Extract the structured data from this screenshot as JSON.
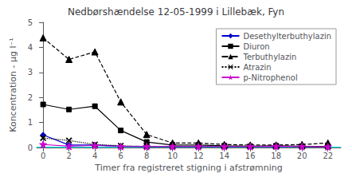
{
  "chart_data": {
    "type": "line",
    "title": "Nedbørshændelse 12-05-1999 i Lillebæk, Fyn",
    "xlabel": "Timer fra registreret stigning i afstrømning",
    "ylabel": "Koncentration - µg l⁻¹",
    "x": [
      0,
      2,
      4,
      6,
      8,
      10,
      12,
      14,
      16,
      18,
      20,
      22
    ],
    "xlim": [
      -0.5,
      23
    ],
    "xticks": [
      0,
      2,
      4,
      6,
      8,
      10,
      12,
      14,
      16,
      18,
      20,
      22
    ],
    "ylim": [
      0,
      5
    ],
    "yticks": [
      0,
      1,
      2,
      3,
      4,
      5
    ],
    "grid": false,
    "legend": "upper right",
    "reference_lines": [
      {
        "y": 0.03,
        "color": "#00ffff"
      }
    ],
    "series": [
      {
        "name": "Desethylterbuthylazin",
        "color": "#0000cc",
        "marker": "diamond",
        "line_style": "solid",
        "values": [
          0.5,
          0.1,
          0.1,
          0.05,
          0.04,
          0.04,
          0.04,
          0.04,
          0.04,
          0.04,
          0.04,
          0.04
        ]
      },
      {
        "name": "Diuron",
        "color": "#000000",
        "marker": "square",
        "line_style": "solid",
        "values": [
          1.72,
          1.52,
          1.65,
          0.68,
          0.22,
          0.1,
          0.1,
          0.07,
          0.05,
          0.07,
          0.05,
          0.04
        ]
      },
      {
        "name": "Terbuthylazin",
        "color": "#000000",
        "marker": "triangle",
        "line_style": "dashed",
        "values": [
          4.38,
          3.52,
          3.82,
          1.82,
          0.52,
          0.18,
          0.18,
          0.12,
          0.1,
          0.1,
          0.12,
          0.18
        ]
      },
      {
        "name": "Atrazin",
        "color": "#000000",
        "marker": "x",
        "line_style": "dotted",
        "values": [
          0.38,
          0.28,
          0.12,
          0.07,
          0.04,
          0.04,
          0.04,
          0.04,
          0.04,
          0.04,
          0.04,
          0.04
        ]
      },
      {
        "name": "p-Nitrophenol",
        "color": "#cc00cc",
        "marker": "star",
        "line_style": "solid",
        "values": [
          0.12,
          0.05,
          0.08,
          0.04,
          0.04,
          0.04,
          0.04,
          0.04,
          0.04,
          0.05,
          0.04,
          0.03
        ]
      }
    ]
  }
}
